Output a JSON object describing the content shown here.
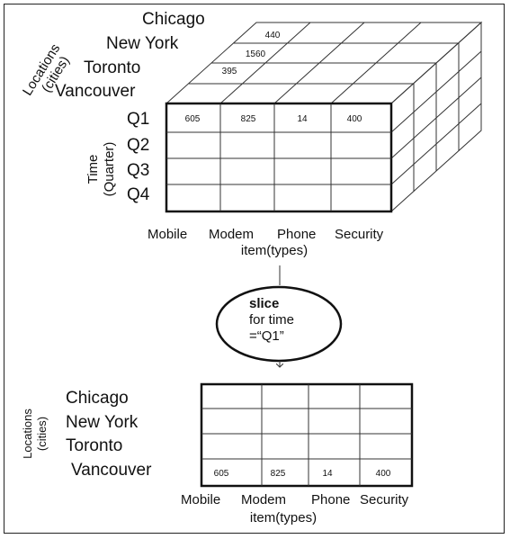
{
  "cube": {
    "locations_axis_label": [
      "Locations",
      "(cities)"
    ],
    "cities": [
      "Chicago",
      "New York",
      "Toronto",
      "Vancouver"
    ],
    "time_axis_label": [
      "Time",
      "(Quarter)"
    ],
    "quarters": [
      "Q1",
      "Q2",
      "Q3",
      "Q4"
    ],
    "items": [
      "Mobile",
      "Modem",
      "Phone",
      "Security"
    ],
    "item_axis_label": "item(types)",
    "front_values": [
      "605",
      "825",
      "14",
      "400"
    ],
    "top_values": [
      "440",
      "1560",
      "395"
    ]
  },
  "operation": {
    "title": "slice",
    "line1": "for time",
    "line2": "=“Q1”"
  },
  "slice": {
    "locations_axis_label": [
      "Locations",
      "(cities)"
    ],
    "cities": [
      "Chicago",
      "New York",
      "Toronto",
      "Vancouver"
    ],
    "items": [
      "Mobile",
      "Modem",
      "Phone",
      "Security"
    ],
    "item_axis_label": "item(types)",
    "values": [
      "605",
      "825",
      "14",
      "400"
    ]
  }
}
